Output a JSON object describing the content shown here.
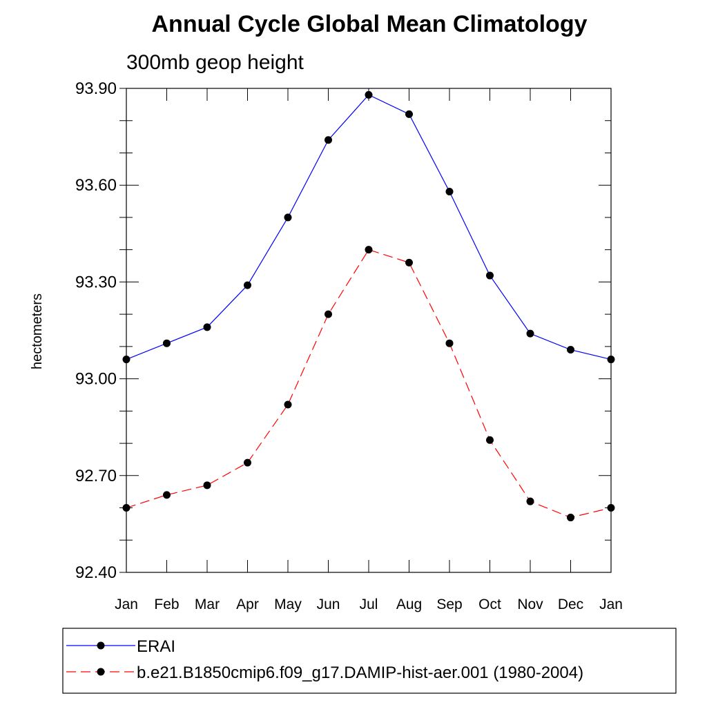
{
  "chart_data": {
    "type": "line",
    "title": "Annual Cycle Global Mean Climatology",
    "subtitle": "300mb geop height",
    "xlabel": "",
    "ylabel": "hectometers",
    "categories": [
      "Jan",
      "Feb",
      "Mar",
      "Apr",
      "May",
      "Jun",
      "Jul",
      "Aug",
      "Sep",
      "Oct",
      "Nov",
      "Dec",
      "Jan"
    ],
    "ylim": [
      92.4,
      93.9
    ],
    "yticks": [
      92.4,
      92.7,
      93.0,
      93.3,
      93.6,
      93.9
    ],
    "ytick_labels": [
      "92.40",
      "92.70",
      "93.00",
      "93.30",
      "93.60",
      "93.90"
    ],
    "y_minor_step": 0.1,
    "grid": false,
    "legend_position": "bottom",
    "series": [
      {
        "name": "ERAI",
        "color": "#0000ff",
        "line_style": "solid",
        "marker": "filled-circle",
        "values": [
          93.06,
          93.11,
          93.16,
          93.29,
          93.5,
          93.74,
          93.88,
          93.82,
          93.58,
          93.32,
          93.14,
          93.09,
          93.06
        ]
      },
      {
        "name": "b.e21.B1850cmip6.f09_g17.DAMIP-hist-aer.001 (1980-2004)",
        "color": "#ff0000",
        "line_style": "dashed",
        "marker": "filled-circle",
        "values": [
          92.6,
          92.64,
          92.67,
          92.74,
          92.92,
          93.2,
          93.4,
          93.36,
          93.11,
          92.81,
          92.62,
          92.57,
          92.6
        ]
      }
    ]
  }
}
